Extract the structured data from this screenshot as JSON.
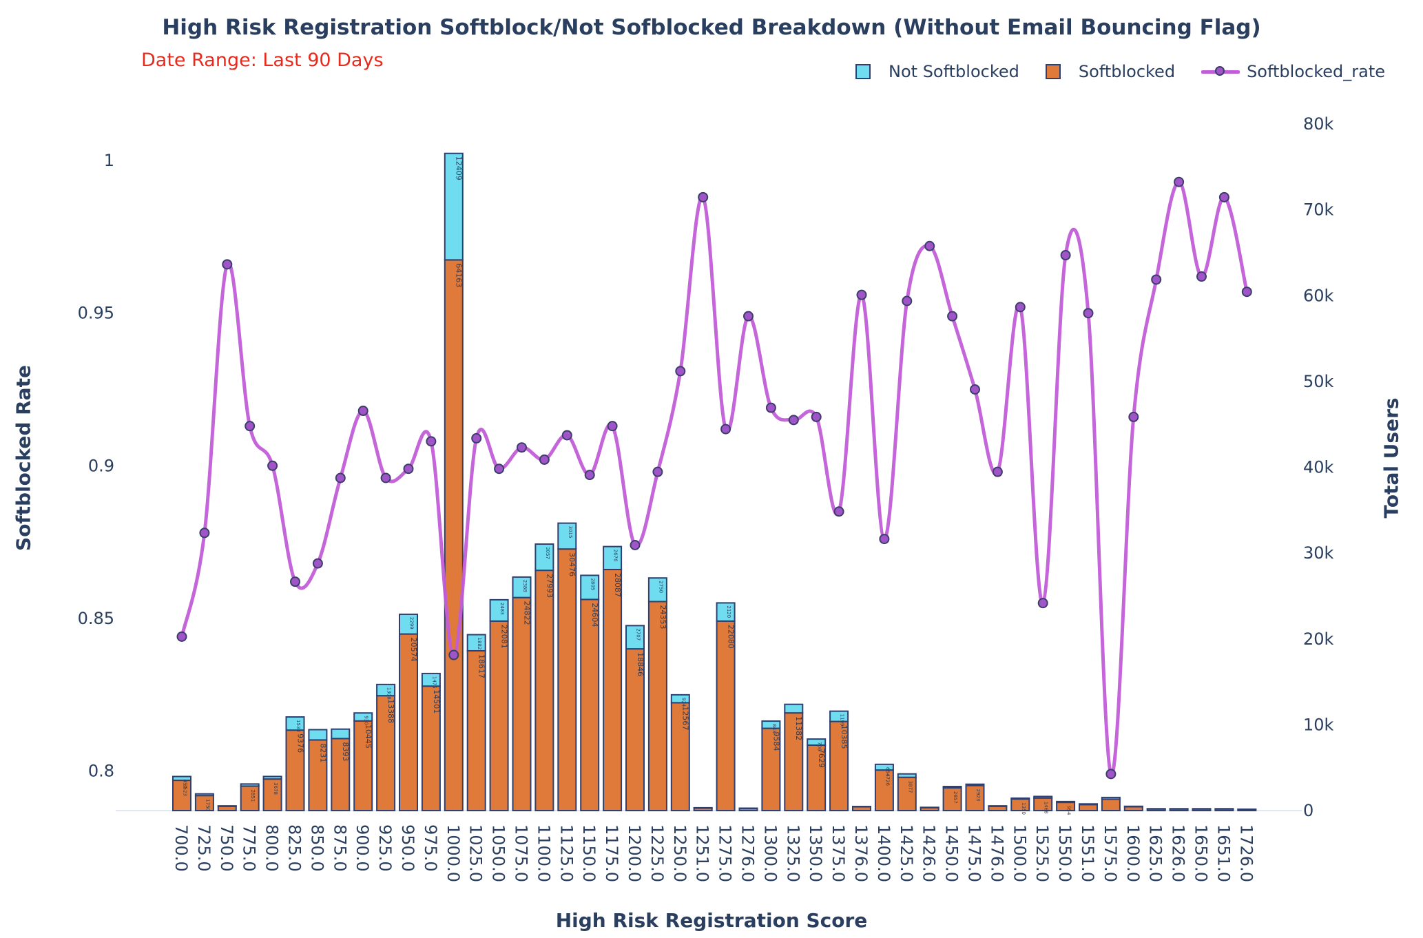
{
  "chart_data": {
    "type": "bar",
    "barmode": "stack",
    "title": "High Risk Registration Softblock/Not Sofblocked Breakdown (Without Email Bouncing Flag)",
    "subtitle": "Date Range: Last 90 Days",
    "xlabel": "High Risk Registration Score",
    "ylabel_left": "Softblocked Rate",
    "ylabel_right": "Total Users",
    "ylim_left": [
      0.787,
      1.012
    ],
    "ylim_right": [
      0,
      80000
    ],
    "yticks_left": [
      "0.8",
      "0.85",
      "0.9",
      "0.95",
      "1"
    ],
    "yticks_right": [
      "0",
      "10k",
      "20k",
      "30k",
      "40k",
      "50k",
      "60k",
      "70k",
      "80k"
    ],
    "grid": false,
    "legend_position": "top-right",
    "categories": [
      "700.0",
      "725.0",
      "750.0",
      "775.0",
      "800.0",
      "825.0",
      "850.0",
      "875.0",
      "900.0",
      "925.0",
      "950.0",
      "975.0",
      "1000.0",
      "1025.0",
      "1050.0",
      "1075.0",
      "1100.0",
      "1125.0",
      "1150.0",
      "1175.0",
      "1200.0",
      "1225.0",
      "1250.0",
      "1251.0",
      "1275.0",
      "1276.0",
      "1300.0",
      "1325.0",
      "1350.0",
      "1375.0",
      "1376.0",
      "1400.0",
      "1425.0",
      "1426.0",
      "1450.0",
      "1475.0",
      "1476.0",
      "1500.0",
      "1525.0",
      "1550.0",
      "1551.0",
      "1575.0",
      "1600.0",
      "1625.0",
      "1626.0",
      "1650.0",
      "1651.0",
      "1726.0"
    ],
    "series": [
      {
        "name": "Softblocked",
        "color": "#e07a3a",
        "values": [
          3523,
          1750,
          500,
          2851,
          3678,
          9376,
          8231,
          8393,
          10445,
          13388,
          20574,
          14501,
          64163,
          18617,
          22081,
          24822,
          27993,
          30476,
          24604,
          28087,
          18846,
          24353,
          12567,
          300,
          22080,
          250,
          9584,
          11382,
          7629,
          10385,
          450,
          4726,
          3877,
          350,
          2657,
          2923,
          500,
          1350,
          1468,
          954,
          700,
          1333,
          450,
          200,
          200,
          200,
          200,
          150
        ],
        "labels": [
          "3523",
          "1750",
          "",
          "2851",
          "3678",
          "9376",
          "8231",
          "8393",
          "10445",
          "13388",
          "20574",
          "14501",
          "64163",
          "18617",
          "22081",
          "24822",
          "27993",
          "30476",
          "24604",
          "28087",
          "18846",
          "24353",
          "12567",
          "",
          "22080",
          "",
          "9584",
          "11382",
          "7629",
          "10385",
          "",
          "4726",
          "3877",
          "",
          "2657",
          "2923",
          "",
          "1350",
          "1468",
          "954",
          "",
          "",
          "",
          "",
          "",
          "",
          "",
          ""
        ]
      },
      {
        "name": "Not Softblocked",
        "color": "#6fdcf0",
        "values": [
          450,
          200,
          50,
          250,
          300,
          1533,
          1200,
          1100,
          930,
          1308,
          2299,
          1475,
          12409,
          1882,
          2483,
          2388,
          3057,
          3015,
          2805,
          2676,
          2707,
          2750,
          924,
          30,
          2120,
          30,
          843,
          1000,
          706,
          1199,
          30,
          664,
          400,
          30,
          150,
          150,
          50,
          100,
          180,
          100,
          80,
          200,
          50,
          20,
          20,
          20,
          20,
          15
        ],
        "labels": [
          "450",
          "",
          "",
          "",
          "",
          "1533",
          "",
          "",
          "930",
          "1308",
          "2299",
          "1475",
          "12409",
          "1882",
          "2483",
          "2388",
          "3057",
          "3015",
          "2805",
          "2676",
          "2707",
          "2750",
          "924",
          "",
          "2120",
          "",
          "843",
          "",
          "706",
          "1199",
          "",
          "664",
          "",
          "",
          "",
          "",
          "",
          "",
          "",
          "",
          "",
          "",
          "",
          "",
          "",
          "",
          "",
          ""
        ]
      },
      {
        "name": "Softblocked_rate",
        "type": "line",
        "color": "#c15dd8",
        "values": [
          0.844,
          0.878,
          0.966,
          0.913,
          0.9,
          0.862,
          0.868,
          0.896,
          0.918,
          0.896,
          0.899,
          0.908,
          0.838,
          0.909,
          0.899,
          0.906,
          0.902,
          0.91,
          0.897,
          0.913,
          0.874,
          0.898,
          0.931,
          0.988,
          0.912,
          0.949,
          0.919,
          0.915,
          0.916,
          0.885,
          0.956,
          0.876,
          0.954,
          0.972,
          0.949,
          0.925,
          0.898,
          0.952,
          0.855,
          0.969,
          0.95,
          0.799,
          0.916,
          0.961,
          0.993,
          0.962,
          0.988,
          0.957
        ]
      }
    ]
  }
}
